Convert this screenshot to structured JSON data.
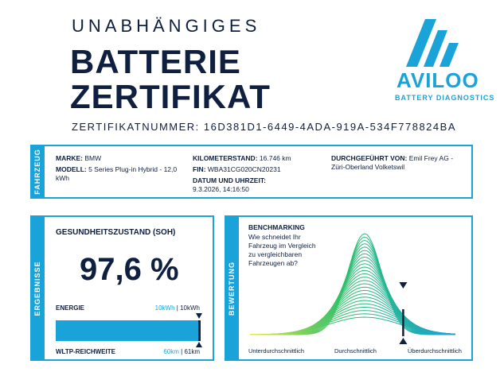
{
  "header": {
    "subtitle": "UNABHÄNGIGES",
    "title_line1": "BATTERIE",
    "title_line2": "ZERTIFIKAT",
    "certificate_label": "ZERTIFIKATNUMMER:",
    "certificate_number": "16D381D1-6449-4ADA-919A-534F778824BA"
  },
  "logo": {
    "name": "AVILOO",
    "tagline": "BATTERY DIAGNOSTICS",
    "icon": "aviloo-logo-icon",
    "color": "#1aa3d9"
  },
  "vehicle": {
    "tab_label": "FAHRZEUG",
    "make_label": "MARKE:",
    "make_value": "BMW",
    "model_label": "MODELL:",
    "model_value": "5 Series Plug-in Hybrid - 12,0",
    "model_value_cont": "kWh",
    "mileage_label": "KILOMETERSTAND:",
    "mileage_value": "16.746 km",
    "vin_label": "FIN:",
    "vin_value": "WBA31CG020CN20231",
    "datetime_label": "DATUM UND UHRZEIT:",
    "datetime_value": "9.3.2026, 14:16:50",
    "performed_label": "DURCHGEFÜHRT VON:",
    "performed_value": "Emil Frey AG -",
    "performed_value_cont": "Züri-Oberland Volketswil"
  },
  "results": {
    "tab_label": "ERGEBNISSE",
    "soh_title": "GESUNDHEITSZUSTAND (SOH)",
    "soh_value": "97,6 %",
    "soh_fraction": 0.976,
    "energy_label": "ENERGIE",
    "energy_value_accent": "10kWh",
    "energy_value_sep": " | ",
    "energy_value": "10kWh",
    "range_label": "WLTP-REICHWEITE",
    "range_value_accent": "60km",
    "range_value_sep": " | ",
    "range_value": "61km"
  },
  "benchmark": {
    "tab_label": "BEWERTUNG",
    "title": "BENCHMARKING",
    "text": "Wie schneidet Ihr Fahrzeug im Vergleich zu vergleichbaren Fahrzeugen ab?",
    "label_low": "Unterdurchschnittlich",
    "label_mid": "Durchschnittlich",
    "label_high": "Überdurchschnittlich",
    "position_fraction": 0.74,
    "colors": [
      "#1aa3d9",
      "#2fbf6a",
      "#e6e84a"
    ]
  }
}
